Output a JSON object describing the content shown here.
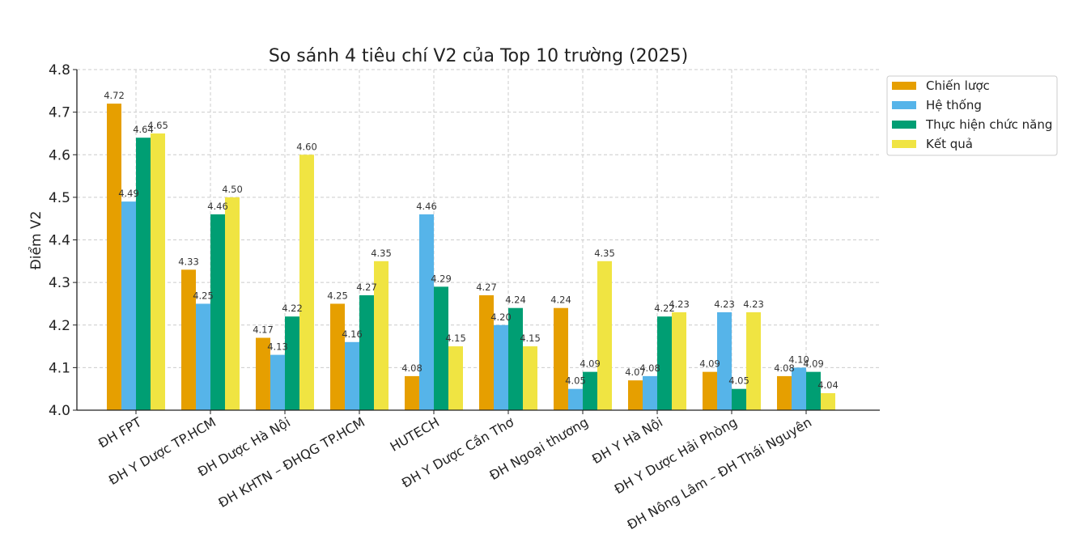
{
  "chart_data": {
    "type": "bar",
    "title": "So sánh 4 tiêu chí V2 của Top 10 trường (2025)",
    "xlabel": "",
    "ylabel": "Điểm V2",
    "ylim": [
      4.0,
      4.8
    ],
    "yticks": [
      "4.0",
      "4.1",
      "4.2",
      "4.3",
      "4.4",
      "4.5",
      "4.6",
      "4.7",
      "4.8"
    ],
    "grid": true,
    "legend_position": "top-right",
    "categories": [
      "ĐH FPT",
      "ĐH Y Dược TP.HCM",
      "ĐH Dược Hà Nội",
      "ĐH KHTN – ĐHQG TP.HCM",
      "HUTECH",
      "ĐH Y Dược Cần Thơ",
      "ĐH Ngoại thương",
      "ĐH Y Hà Nội",
      "ĐH Y Dược Hải Phòng",
      "ĐH Nông Lâm – ĐH Thái Nguyên"
    ],
    "series": [
      {
        "name": "Chiến lược",
        "color": "#E69F00",
        "values": [
          4.72,
          4.33,
          4.17,
          4.25,
          4.08,
          4.27,
          4.24,
          4.07,
          4.09,
          4.08
        ]
      },
      {
        "name": "Hệ thống",
        "color": "#56B4E9",
        "values": [
          4.49,
          4.25,
          4.13,
          4.16,
          4.46,
          4.2,
          4.05,
          4.08,
          4.23,
          4.1
        ]
      },
      {
        "name": "Thực hiện chức năng",
        "color": "#009E73",
        "values": [
          4.64,
          4.46,
          4.22,
          4.27,
          4.29,
          4.24,
          4.09,
          4.22,
          4.05,
          4.09
        ]
      },
      {
        "name": "Kết quả",
        "color": "#F0E442",
        "values": [
          4.65,
          4.5,
          4.6,
          4.35,
          4.15,
          4.15,
          4.35,
          4.23,
          4.23,
          4.04
        ]
      }
    ]
  }
}
